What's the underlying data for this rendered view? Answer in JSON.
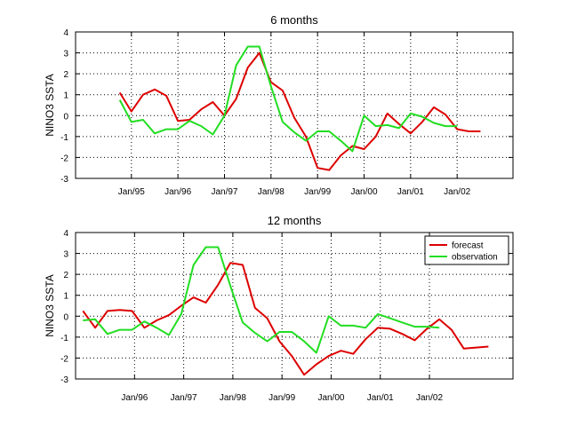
{
  "chart_data": [
    {
      "type": "line",
      "title": "6 months",
      "ylabel": "NINO3 SSTA",
      "xlabel": "",
      "ylim": [
        -3,
        4
      ],
      "yticks": [
        -3,
        -2,
        -1,
        0,
        1,
        2,
        3,
        4
      ],
      "xlim": [
        1993.8,
        2003.2
      ],
      "xtick_positions": [
        1995.0,
        1996.0,
        1997.0,
        1998.0,
        1999.0,
        2000.0,
        2001.0,
        2002.0
      ],
      "xtick_labels": [
        "Jan/95",
        "Jan/96",
        "Jan/97",
        "Jan/98",
        "Jan/99",
        "Jan/00",
        "Jan/01",
        "Jan/02"
      ],
      "grid": true,
      "legend": null,
      "series": [
        {
          "color": "#dd0000",
          "x": [
            1994.75,
            1995.0,
            1995.25,
            1995.5,
            1995.75,
            1996.0,
            1996.25,
            1996.5,
            1996.75,
            1997.0,
            1997.25,
            1997.5,
            1997.75,
            1998.0,
            1998.25,
            1998.5,
            1998.75,
            1999.0,
            1999.25,
            1999.5,
            1999.75,
            2000.0,
            2000.25,
            2000.5,
            2000.75,
            2001.0,
            2001.25,
            2001.5,
            2001.75,
            2002.0,
            2002.25,
            2002.5
          ],
          "y": [
            1.1,
            0.2,
            1.0,
            1.25,
            0.95,
            -0.25,
            -0.2,
            0.3,
            0.65,
            0.0,
            0.8,
            2.3,
            3.0,
            1.6,
            1.2,
            -0.1,
            -1.0,
            -2.5,
            -2.6,
            -1.9,
            -1.45,
            -1.6,
            -1.0,
            0.1,
            -0.4,
            -0.85,
            -0.3,
            0.4,
            0.05,
            -0.65,
            -0.75,
            -0.75
          ]
        },
        {
          "color": "#22dd22",
          "x": [
            1994.75,
            1995.0,
            1995.25,
            1995.5,
            1995.75,
            1996.0,
            1996.25,
            1996.5,
            1996.75,
            1997.0,
            1997.25,
            1997.5,
            1997.75,
            1998.0,
            1998.25,
            1998.5,
            1998.75,
            1999.0,
            1999.25,
            1999.5,
            1999.75,
            2000.0,
            2000.25,
            2000.5,
            2000.75,
            2001.0,
            2001.25,
            2001.5,
            2001.75,
            2002.0
          ],
          "y": [
            0.75,
            -0.3,
            -0.2,
            -0.85,
            -0.65,
            -0.65,
            -0.25,
            -0.5,
            -0.9,
            0.0,
            2.4,
            3.3,
            3.3,
            1.4,
            -0.3,
            -0.8,
            -1.2,
            -0.75,
            -0.75,
            -1.2,
            -1.7,
            0.0,
            -0.5,
            -0.45,
            -0.6,
            0.1,
            -0.05,
            -0.35,
            -0.5,
            -0.5
          ]
        }
      ]
    },
    {
      "type": "line",
      "title": "12 months",
      "ylabel": "NINO3 SSTA",
      "xlabel": "",
      "ylim": [
        -3,
        4
      ],
      "yticks": [
        -3,
        -2,
        -1,
        0,
        1,
        2,
        3,
        4
      ],
      "xlim": [
        1994.8,
        2003.7
      ],
      "xtick_positions": [
        1996.0,
        1997.0,
        1998.0,
        1999.0,
        2000.0,
        2001.0,
        2002.0
      ],
      "xtick_labels": [
        "Jan/96",
        "Jan/97",
        "Jan/98",
        "Jan/99",
        "Jan/00",
        "Jan/01",
        "Jan/02"
      ],
      "grid": true,
      "legend": {
        "position": "top-right",
        "entries": [
          {
            "label": "forecast",
            "color": "#dd0000"
          },
          {
            "label": "observation",
            "color": "#22dd22"
          }
        ]
      },
      "series": [
        {
          "color": "#dd0000",
          "x": [
            1994.95,
            1995.2,
            1995.45,
            1995.7,
            1995.95,
            1996.2,
            1996.45,
            1996.7,
            1996.95,
            1997.2,
            1997.45,
            1997.7,
            1997.95,
            1998.2,
            1998.45,
            1998.7,
            1998.95,
            1999.2,
            1999.45,
            1999.7,
            1999.95,
            2000.2,
            2000.45,
            2000.7,
            2000.95,
            2001.2,
            2001.45,
            2001.7,
            2001.95,
            2002.2,
            2002.45,
            2002.7,
            2002.95,
            2003.2
          ],
          "y": [
            0.25,
            -0.55,
            0.25,
            0.3,
            0.25,
            -0.55,
            -0.2,
            0.05,
            0.5,
            0.9,
            0.65,
            1.5,
            2.55,
            2.45,
            0.4,
            -0.1,
            -1.2,
            -1.9,
            -2.8,
            -2.3,
            -1.9,
            -1.65,
            -1.8,
            -1.1,
            -0.55,
            -0.6,
            -0.85,
            -1.15,
            -0.6,
            -0.15,
            -0.65,
            -1.55,
            -1.5,
            -1.45
          ]
        },
        {
          "color": "#22dd22",
          "x": [
            1994.95,
            1995.2,
            1995.45,
            1995.7,
            1995.95,
            1996.2,
            1996.45,
            1996.7,
            1996.95,
            1997.2,
            1997.45,
            1997.7,
            1997.95,
            1998.2,
            1998.45,
            1998.7,
            1998.95,
            1999.2,
            1999.45,
            1999.7,
            1999.95,
            2000.2,
            2000.45,
            2000.7,
            2000.95,
            2001.2,
            2001.45,
            2001.7,
            2001.95,
            2002.2
          ],
          "y": [
            -0.2,
            -0.15,
            -0.85,
            -0.65,
            -0.65,
            -0.25,
            -0.55,
            -0.9,
            0.1,
            2.45,
            3.3,
            3.3,
            1.45,
            -0.3,
            -0.8,
            -1.2,
            -0.75,
            -0.75,
            -1.2,
            -1.75,
            0.0,
            -0.45,
            -0.45,
            -0.55,
            0.1,
            -0.1,
            -0.3,
            -0.5,
            -0.5,
            -0.55
          ]
        }
      ]
    }
  ]
}
